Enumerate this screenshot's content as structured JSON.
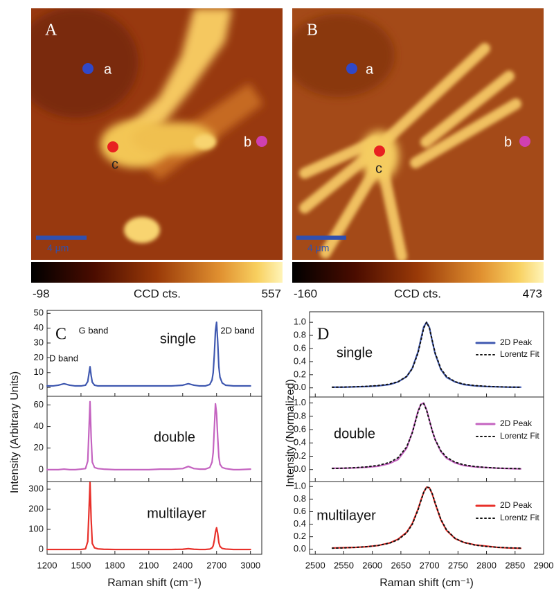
{
  "chart_data": [
    {
      "type": "heatmap",
      "panel_label": "A",
      "points": [
        "a",
        "b",
        "c"
      ],
      "scale_bar": "4 μm",
      "colorbar_range": [
        -98,
        557
      ],
      "colorbar_label": "CCD cts."
    },
    {
      "type": "heatmap",
      "panel_label": "B",
      "points": [
        "a",
        "b",
        "c"
      ],
      "scale_bar": "4 μm",
      "colorbar_range": [
        -160,
        473
      ],
      "colorbar_label": "CCD cts."
    },
    {
      "type": "line",
      "panel_label": "C",
      "x_label": "Raman shift (cm⁻¹)",
      "y_label": "Intensity (Arbitrary Units)",
      "xlim": [
        1200,
        3100
      ],
      "xticks": [
        1200,
        1500,
        1800,
        2100,
        2400,
        2700,
        3000
      ],
      "x": [
        1200,
        1250,
        1300,
        1350,
        1400,
        1450,
        1500,
        1540,
        1560,
        1570,
        1580,
        1590,
        1600,
        1620,
        1650,
        1700,
        1800,
        1900,
        2000,
        2100,
        2200,
        2300,
        2400,
        2450,
        2500,
        2550,
        2600,
        2640,
        2660,
        2670,
        2680,
        2690,
        2700,
        2710,
        2720,
        2730,
        2750,
        2780,
        2850,
        2900,
        3000
      ],
      "subplots": [
        {
          "label": "single",
          "ylim": [
            -6,
            52
          ],
          "yticks": [
            0,
            10,
            20,
            30,
            40,
            50
          ],
          "annotations": [
            "G band",
            "D band",
            "2D band"
          ],
          "series": [
            {
              "color": "#3f58b0",
              "style": "solid",
              "values": [
                1,
                1,
                1.5,
                2.5,
                1.5,
                1,
                1,
                1.5,
                4,
                9,
                14,
                8,
                3.5,
                1.5,
                1,
                1,
                1,
                1,
                1,
                1,
                1,
                1,
                1.5,
                2.5,
                1.5,
                1,
                1,
                2,
                5,
                10,
                22,
                38,
                44,
                31,
                14,
                7,
                3,
                1.5,
                1,
                1,
                1
              ]
            }
          ]
        },
        {
          "label": "double",
          "ylim": [
            -11,
            68
          ],
          "yticks": [
            0,
            20,
            40,
            60
          ],
          "annotations": [],
          "series": [
            {
              "color": "#c463c0",
              "style": "solid",
              "values": [
                0,
                0,
                0,
                0.5,
                0,
                0,
                0.5,
                1,
                8,
                35,
                63,
                30,
                7,
                2,
                1,
                0.5,
                0,
                0,
                0,
                0,
                0.5,
                0.5,
                1,
                3,
                1,
                0.5,
                0.5,
                2,
                7,
                16,
                38,
                61,
                52,
                30,
                12,
                5,
                2,
                1,
                0,
                0,
                0.5
              ]
            }
          ]
        },
        {
          "label": "multilayer",
          "ylim": [
            -24,
            338
          ],
          "yticks": [
            0,
            100,
            200,
            300
          ],
          "annotations": [],
          "series": [
            {
              "color": "#e8302a",
              "style": "solid",
              "values": [
                0,
                0,
                0,
                0,
                0,
                0,
                0,
                3,
                40,
                180,
                333,
                150,
                30,
                8,
                3,
                1,
                0,
                0,
                0,
                0,
                0,
                0,
                1,
                4,
                1,
                0,
                0,
                2,
                8,
                18,
                45,
                85,
                108,
                80,
                35,
                15,
                5,
                2,
                0,
                0,
                0
              ]
            }
          ]
        }
      ]
    },
    {
      "type": "line",
      "panel_label": "D",
      "x_label": "Raman shift (cm⁻¹)",
      "y_label": "Intensity (Normalized)",
      "xlim": [
        2490,
        2900
      ],
      "xticks": [
        2500,
        2550,
        2600,
        2650,
        2700,
        2750,
        2800,
        2850,
        2900
      ],
      "x": [
        2530,
        2550,
        2570,
        2590,
        2610,
        2630,
        2645,
        2660,
        2670,
        2680,
        2685,
        2690,
        2695,
        2700,
        2705,
        2710,
        2720,
        2730,
        2745,
        2760,
        2780,
        2800,
        2820,
        2840,
        2860
      ],
      "legend": true,
      "subplots": [
        {
          "label": "single",
          "ylim": [
            -0.14,
            1.16
          ],
          "yticks": [
            {
              "value": 0,
              "label": "0.0"
            },
            0.2,
            0.4,
            0.6,
            0.8,
            {
              "value": 1,
              "label": "1.0"
            }
          ],
          "annotations": [],
          "series": [
            {
              "name": "2D Peak",
              "color": "#3f58b0",
              "style": "solid",
              "values": [
                0.01,
                0.01,
                0.015,
                0.02,
                0.03,
                0.05,
                0.09,
                0.17,
                0.3,
                0.55,
                0.74,
                0.93,
                1.0,
                0.92,
                0.71,
                0.52,
                0.28,
                0.16,
                0.09,
                0.05,
                0.03,
                0.02,
                0.015,
                0.01,
                0.01
              ]
            },
            {
              "name": "Lorentz Fit",
              "color": "#111111",
              "style": "dotted",
              "values": [
                0.009,
                0.012,
                0.016,
                0.023,
                0.034,
                0.057,
                0.093,
                0.173,
                0.291,
                0.532,
                0.719,
                0.911,
                1.0,
                0.911,
                0.719,
                0.532,
                0.291,
                0.173,
                0.093,
                0.057,
                0.034,
                0.023,
                0.016,
                0.012,
                0.009
              ]
            }
          ]
        },
        {
          "label": "double",
          "ylim": [
            -0.18,
            1.09
          ],
          "yticks": [
            {
              "value": 0,
              "label": "0.0"
            },
            0.2,
            0.4,
            0.6,
            0.8,
            {
              "value": 1,
              "label": "1.0"
            }
          ],
          "annotations": [],
          "series": [
            {
              "name": "2D Peak",
              "color": "#c463c0",
              "style": "solid",
              "values": [
                0.02,
                0.02,
                0.025,
                0.035,
                0.05,
                0.09,
                0.15,
                0.32,
                0.56,
                0.88,
                0.98,
                1.0,
                0.9,
                0.74,
                0.58,
                0.45,
                0.27,
                0.17,
                0.1,
                0.06,
                0.04,
                0.03,
                0.02,
                0.015,
                0.01
              ]
            },
            {
              "name": "Lorentz Fit",
              "color": "#111111",
              "style": "dotted",
              "values": [
                0.016,
                0.021,
                0.028,
                0.04,
                0.062,
                0.106,
                0.178,
                0.338,
                0.552,
                0.862,
                0.978,
                0.99,
                0.891,
                0.735,
                0.581,
                0.452,
                0.281,
                0.185,
                0.11,
                0.072,
                0.045,
                0.031,
                0.022,
                0.017,
                0.013
              ]
            }
          ]
        },
        {
          "label": "multilayer",
          "ylim": [
            -0.08,
            1.08
          ],
          "yticks": [
            {
              "value": 0,
              "label": "0.0"
            },
            0.2,
            0.4,
            0.6,
            0.8,
            {
              "value": 1,
              "label": "1.0"
            }
          ],
          "annotations": [],
          "series": [
            {
              "name": "2D Peak",
              "color": "#e8302a",
              "style": "solid",
              "values": [
                0.02,
                0.025,
                0.03,
                0.04,
                0.06,
                0.1,
                0.16,
                0.27,
                0.41,
                0.64,
                0.78,
                0.91,
                0.99,
                0.98,
                0.88,
                0.73,
                0.47,
                0.3,
                0.17,
                0.11,
                0.07,
                0.05,
                0.03,
                0.02,
                0.015
              ]
            },
            {
              "name": "Lorentz Fit",
              "color": "#111111",
              "style": "dotted",
              "values": [
                0.017,
                0.022,
                0.03,
                0.041,
                0.06,
                0.097,
                0.152,
                0.261,
                0.399,
                0.626,
                0.77,
                0.908,
                0.992,
                0.982,
                0.883,
                0.741,
                0.478,
                0.308,
                0.174,
                0.109,
                0.066,
                0.044,
                0.031,
                0.023,
                0.018
              ]
            }
          ]
        }
      ]
    }
  ]
}
